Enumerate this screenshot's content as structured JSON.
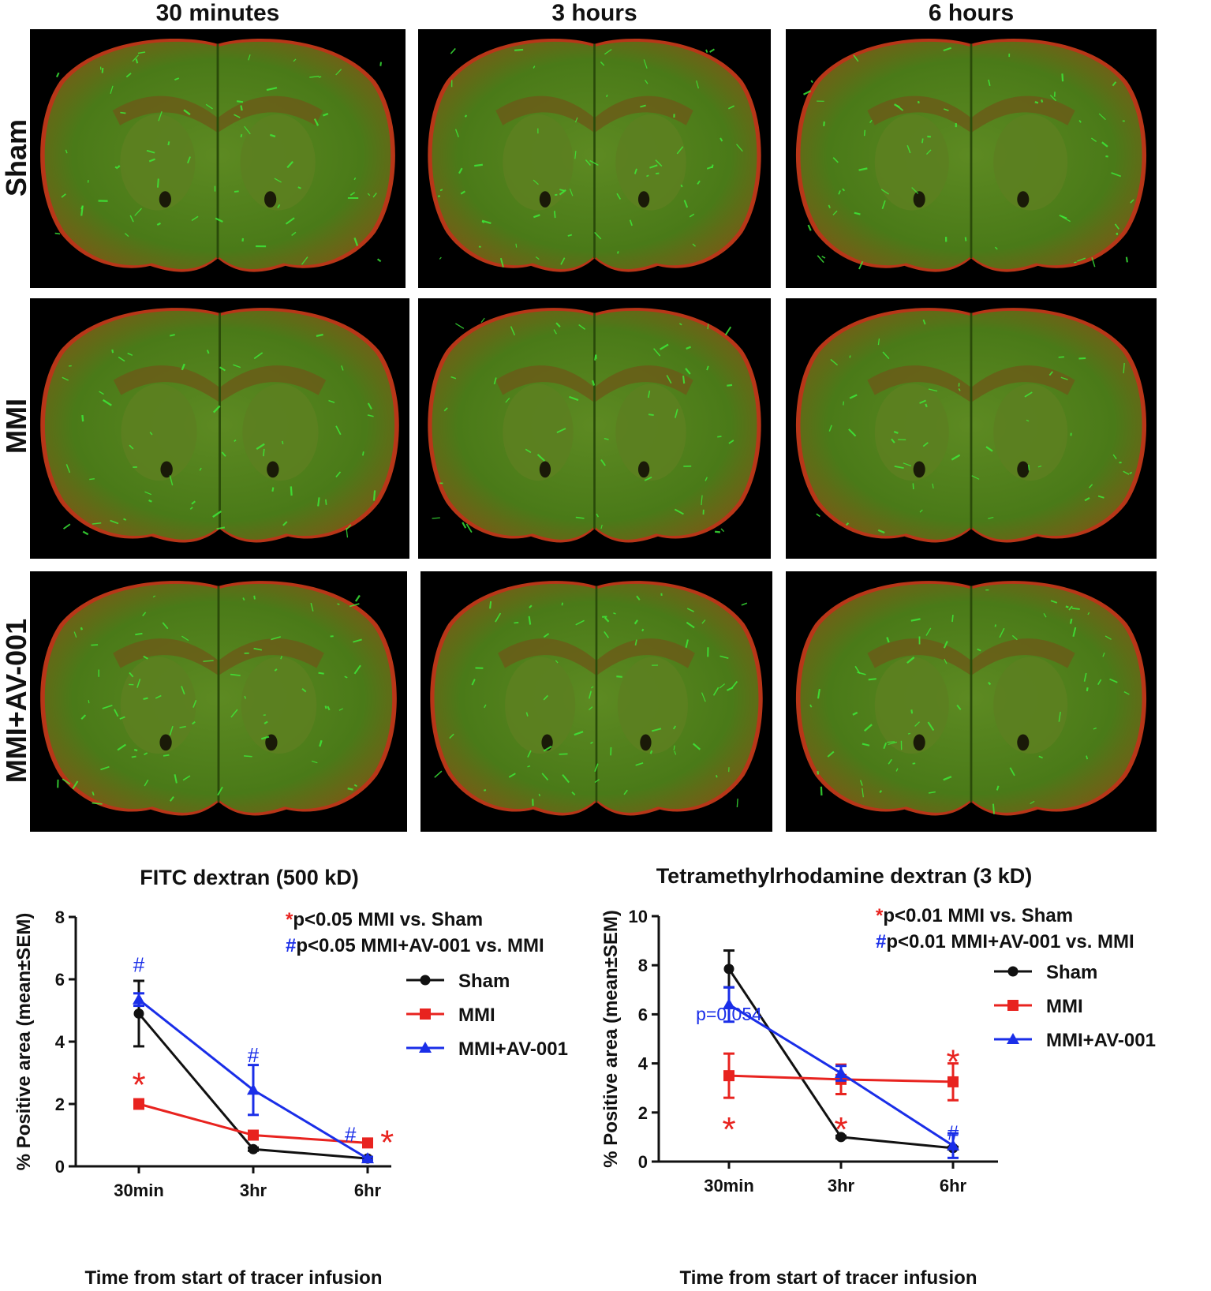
{
  "columns": [
    "30 minutes",
    "3 hours",
    "6 hours"
  ],
  "rows": [
    "Sham",
    "MMI",
    "MMI+AV-001"
  ],
  "micrograph_colors": {
    "tissue_green": "#4a7a18",
    "vessel_green": "#3df03a",
    "edge_red": "#d8401c",
    "background": "#000000"
  },
  "chart_data": [
    {
      "type": "line",
      "title": "FITC dextran (500 kD)",
      "xlabel": "Time from start of tracer infusion",
      "ylabel": "% Positive area (mean±SEM)",
      "categories": [
        "30min",
        "3hr",
        "6hr"
      ],
      "ylim": [
        0,
        8
      ],
      "yticks": [
        0,
        2,
        4,
        6,
        8
      ],
      "legend_position": "top-right",
      "annotations": [
        {
          "marker": "*",
          "text": "p<0.05 MMI vs. Sham",
          "marker_color": "#e8231f"
        },
        {
          "marker": "#",
          "text": "p<0.05 MMI+AV-001 vs. MMI",
          "marker_color": "#1a2ee8"
        }
      ],
      "series": [
        {
          "name": "Sham",
          "color": "#111111",
          "marker": "circle",
          "values": [
            4.9,
            0.55,
            0.25
          ],
          "sem": [
            1.05,
            0.05,
            0.05
          ]
        },
        {
          "name": "MMI",
          "color": "#e8231f",
          "marker": "square",
          "values": [
            2.0,
            1.0,
            0.75
          ],
          "sem": [
            0.15,
            0.1,
            0.1
          ]
        },
        {
          "name": "MMI+AV-001",
          "color": "#1a2ee8",
          "marker": "triangle",
          "values": [
            5.35,
            2.45,
            0.25
          ],
          "sem": [
            0.2,
            0.8,
            0.05
          ]
        }
      ],
      "point_marks": [
        {
          "category": "30min",
          "y": 2.8,
          "symbol": "*",
          "color": "#e8231f"
        },
        {
          "category": "30min",
          "y": 6.5,
          "symbol": "#",
          "color": "#1a2ee8"
        },
        {
          "category": "3hr",
          "y": 3.6,
          "symbol": "#",
          "color": "#1a2ee8"
        },
        {
          "category": "6hr",
          "y": 1.05,
          "symbol": "#",
          "color": "#1a2ee8",
          "dx": -0.15
        },
        {
          "category": "6hr",
          "y": 0.95,
          "symbol": "*",
          "color": "#e8231f",
          "dx": 0.17
        }
      ],
      "text_marks": []
    },
    {
      "type": "line",
      "title": "Tetramethylrhodamine dextran (3 kD)",
      "xlabel": "Time from start of tracer infusion",
      "ylabel": "% Positive area (mean±SEM)",
      "categories": [
        "30min",
        "3hr",
        "6hr"
      ],
      "ylim": [
        0,
        10
      ],
      "yticks": [
        0,
        2,
        4,
        6,
        8,
        10
      ],
      "legend_position": "right",
      "annotations": [
        {
          "marker": "*",
          "text": "p<0.01 MMI vs. Sham",
          "marker_color": "#e8231f"
        },
        {
          "marker": "#",
          "text": "p<0.01 MMI+AV-001 vs. MMI",
          "marker_color": "#1a2ee8"
        }
      ],
      "series": [
        {
          "name": "Sham",
          "color": "#111111",
          "marker": "circle",
          "values": [
            7.85,
            1.0,
            0.55
          ],
          "sem": [
            0.75,
            0.05,
            0.05
          ]
        },
        {
          "name": "MMI",
          "color": "#e8231f",
          "marker": "square",
          "values": [
            3.5,
            3.35,
            3.25
          ],
          "sem": [
            0.9,
            0.6,
            0.75
          ]
        },
        {
          "name": "MMI+AV-001",
          "color": "#1a2ee8",
          "marker": "triangle",
          "values": [
            6.4,
            3.6,
            0.65
          ],
          "sem": [
            0.7,
            0.3,
            0.5
          ]
        }
      ],
      "point_marks": [
        {
          "category": "30min",
          "y": 1.55,
          "symbol": "*",
          "color": "#e8231f"
        },
        {
          "category": "3hr",
          "y": 1.55,
          "symbol": "*",
          "color": "#e8231f"
        },
        {
          "category": "6hr",
          "y": 4.3,
          "symbol": "*",
          "color": "#e8231f"
        },
        {
          "category": "6hr",
          "y": 1.2,
          "symbol": "#",
          "color": "#1a2ee8"
        }
      ],
      "text_marks": [
        {
          "category": "30min",
          "y": 5.75,
          "text": "p=0.054",
          "color": "#1a2ee8"
        }
      ]
    }
  ]
}
